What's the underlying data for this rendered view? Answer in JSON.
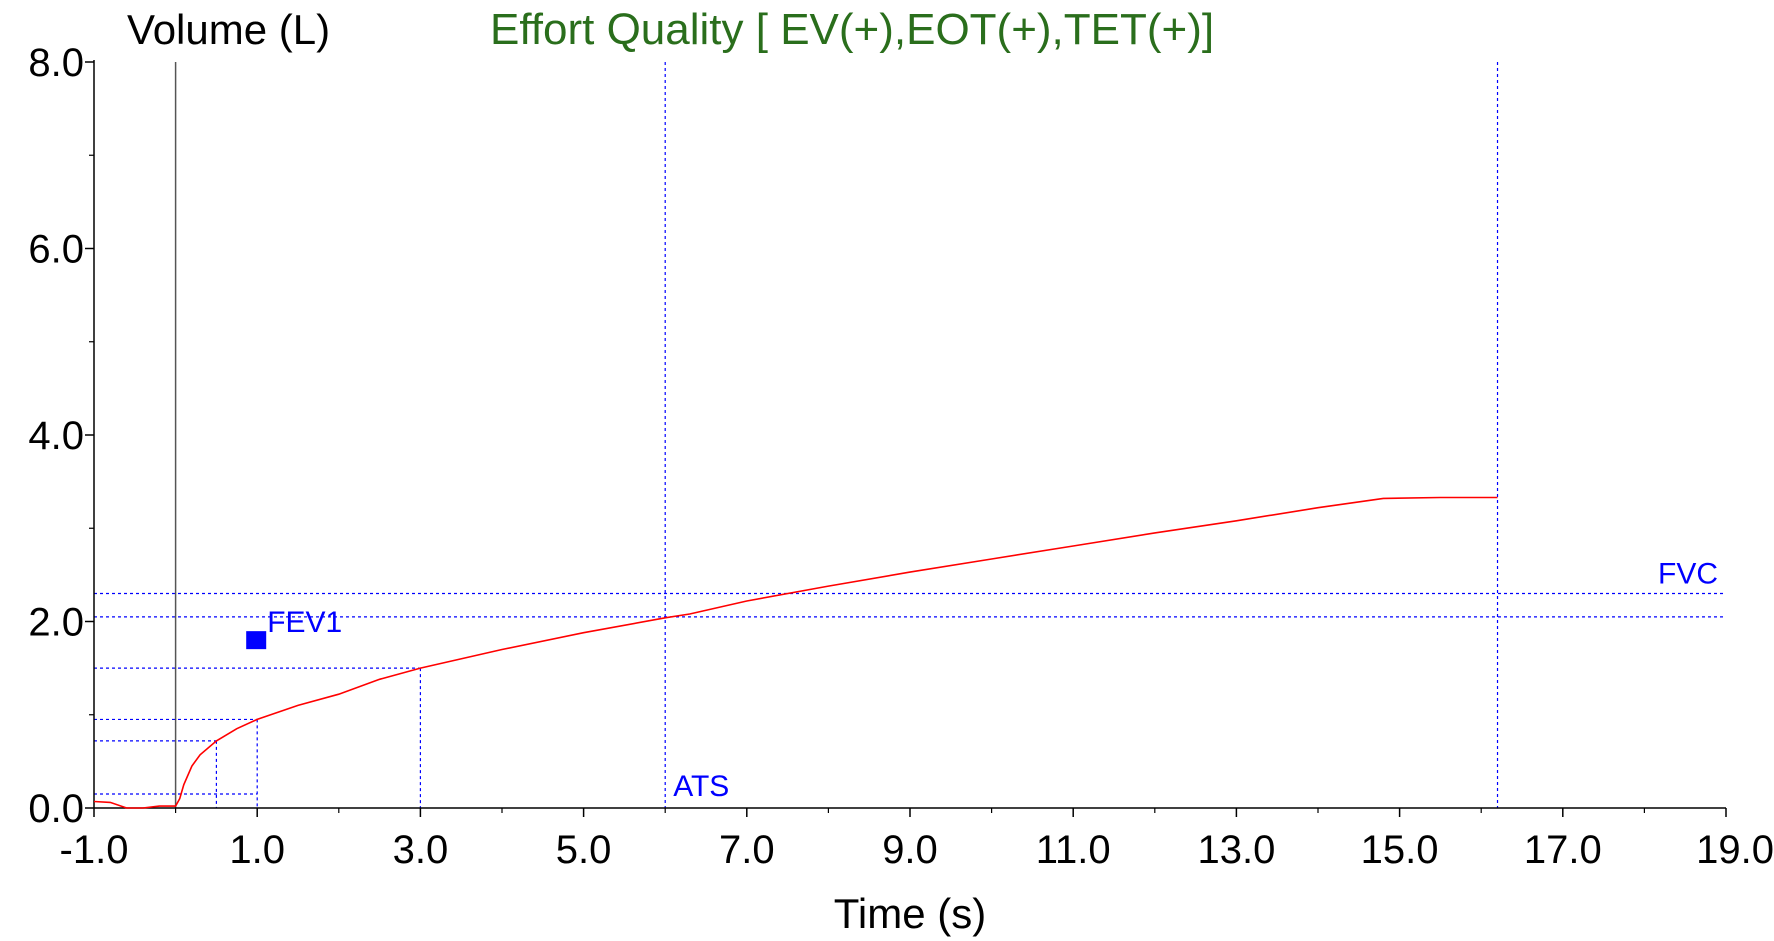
{
  "chart_data": {
    "type": "line",
    "title": "Effort Quality [ EV(+),EOT(+),TET(+)]",
    "ylabel": "Volume (L)",
    "xlabel": "Time (s)",
    "xlim": [
      -1.0,
      19.0
    ],
    "ylim": [
      0.0,
      8.0
    ],
    "x_ticks": [
      -1.0,
      1.0,
      3.0,
      5.0,
      7.0,
      9.0,
      11.0,
      13.0,
      15.0,
      17.0,
      19.0
    ],
    "x_tick_labels": [
      "-1.0",
      "1.0",
      "3.0",
      "5.0",
      "7.0",
      "9.0",
      "11.0",
      "13.0",
      "15.0",
      "17.0",
      "19.0"
    ],
    "y_ticks": [
      0.0,
      2.0,
      4.0,
      6.0,
      8.0
    ],
    "y_tick_labels": [
      "0.0",
      "2.0",
      "4.0",
      "6.0",
      "8.0"
    ],
    "grid": false,
    "series": [
      {
        "color": "#ff0000",
        "x": [
          -1.0,
          -0.8,
          -0.6,
          -0.4,
          -0.2,
          0.0,
          0.05,
          0.1,
          0.2,
          0.3,
          0.5,
          0.75,
          1.0,
          1.5,
          2.0,
          2.5,
          3.0,
          4.0,
          5.0,
          6.0,
          6.3,
          7.0,
          8.0,
          9.0,
          10.0,
          11.0,
          12.0,
          13.0,
          14.0,
          14.8,
          15.5,
          16.2
        ],
        "y": [
          0.07,
          0.06,
          0.0,
          0.0,
          0.02,
          0.02,
          0.1,
          0.25,
          0.45,
          0.57,
          0.72,
          0.85,
          0.95,
          1.1,
          1.22,
          1.38,
          1.5,
          1.7,
          1.88,
          2.04,
          2.08,
          2.22,
          2.38,
          2.53,
          2.67,
          2.81,
          2.95,
          3.08,
          3.22,
          3.32,
          3.33,
          3.33
        ]
      }
    ],
    "reference_color": "#0000ff",
    "vertical_refs": [
      {
        "x": 6.0,
        "label": "ATS"
      },
      {
        "x": 16.2,
        "label": ""
      }
    ],
    "horizontal_refs": [
      {
        "y": 2.3,
        "label": "FVC"
      },
      {
        "y": 2.05,
        "label": ""
      }
    ],
    "point_guides": [
      {
        "x": 0.5,
        "y": 0.72
      },
      {
        "x": 1.0,
        "y": 0.95
      },
      {
        "x": 3.0,
        "y": 1.5
      }
    ],
    "baseline_guide": {
      "y": 0.15,
      "x": 1.0
    },
    "zero_time_line": {
      "x": 0.0,
      "color": "#000000"
    },
    "markers": [
      {
        "x": 1.0,
        "y": 1.8,
        "label": "FEV1",
        "shape": "square"
      }
    ],
    "title_color": "#2a6e1c"
  }
}
